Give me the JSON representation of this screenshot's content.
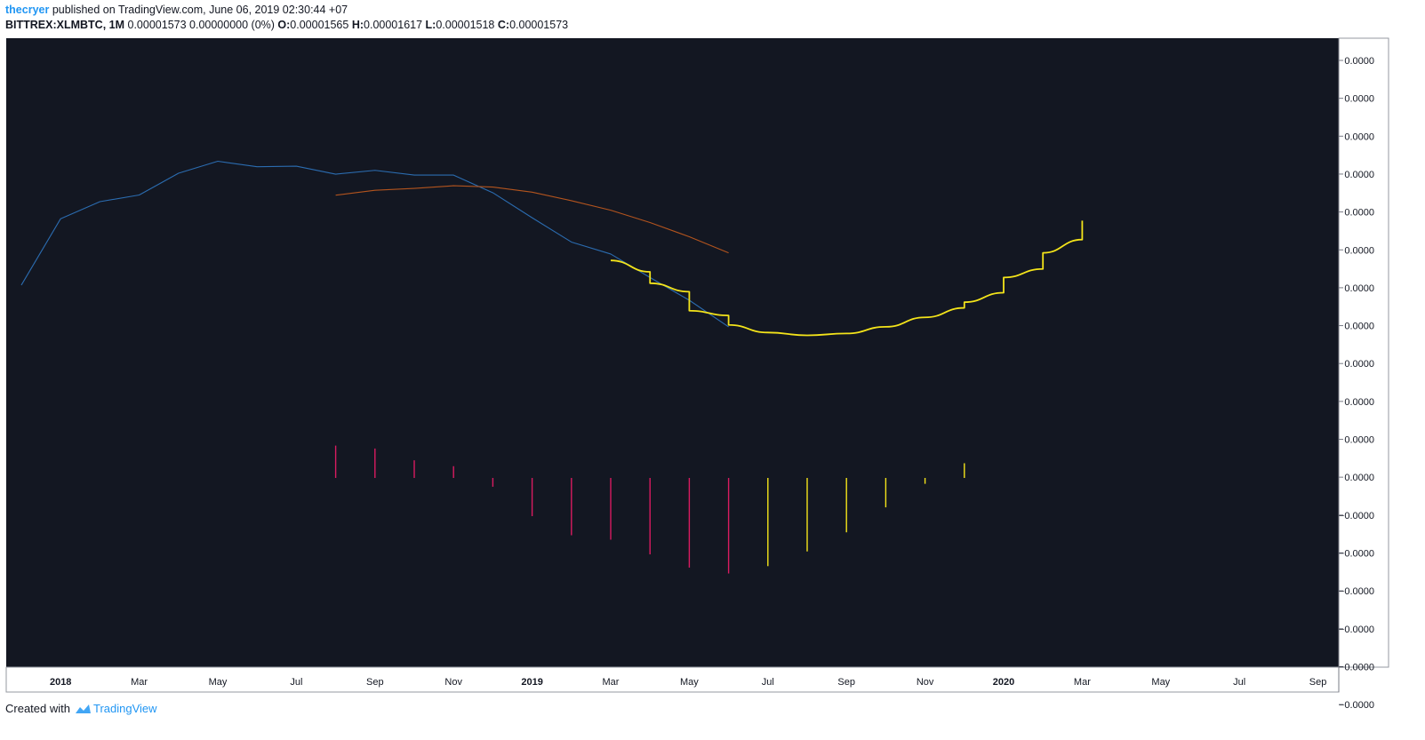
{
  "header": {
    "user": "thecryer",
    "published": " published on TradingView.com, June 06, 2019 02:30:44 +07",
    "symbol": "BITTREX:XLMBTC, 1M",
    "quote": " 0.00001573 0.00000000 (0%) ",
    "o_label": "O:",
    "o_value": "0.00001565 ",
    "h_label": "H:",
    "h_value": "0.00001617 ",
    "l_label": "L:",
    "l_value": "0.00001518 ",
    "c_label": "C:",
    "c_value": "0.00001573"
  },
  "footer": {
    "created_with": "Created with",
    "brand": "TradingView"
  },
  "colors": {
    "background": "#131722",
    "axis_text": "#b2b5be",
    "series_blue": "#2b6cb0",
    "series_orange": "#b3541e",
    "series_yellow": "#f4e41a",
    "hist_red": "#d81b60",
    "hist_yellow": "#f4e41a"
  },
  "chart_data": {
    "type": "line",
    "x_tick_labels": [
      "2018",
      "Mar",
      "May",
      "Jul",
      "Sep",
      "Nov",
      "2019",
      "Mar",
      "May",
      "Jul",
      "Sep",
      "Nov",
      "2020",
      "Mar",
      "May",
      "Jul",
      "Sep"
    ],
    "x_tick_bold": [
      true,
      false,
      false,
      false,
      false,
      false,
      true,
      false,
      false,
      false,
      false,
      false,
      true,
      false,
      false,
      false,
      false
    ],
    "y_tick_labels": [
      "0.0000",
      "0.0000",
      "0.0000",
      "0.0000",
      "0.0000",
      "0.0000",
      "0.0000",
      "0.0000",
      "0.0000",
      "0.0000",
      "0.0000",
      "0.0000",
      "−0.0000",
      "−0.0000",
      "−0.0000",
      "−0.0000",
      "−0.0000",
      "−0.0000"
    ],
    "x_months": [
      "2017-12",
      "2018-01",
      "2018-02",
      "2018-03",
      "2018-04",
      "2018-05",
      "2018-06",
      "2018-07",
      "2018-08",
      "2018-09",
      "2018-10",
      "2018-11",
      "2018-12",
      "2019-01",
      "2019-02",
      "2019-03",
      "2019-04",
      "2019-05",
      "2019-06",
      "2019-07",
      "2019-08",
      "2019-09",
      "2019-10",
      "2019-11",
      "2019-12",
      "2020-01",
      "2020-02",
      "2020-03"
    ],
    "ylim": [
      -6.0,
      16.0
    ],
    "series": [
      {
        "color_key": "series_blue",
        "points": [
          [
            "2017-12",
            8.2
          ],
          [
            "2018-01",
            11.7
          ],
          [
            "2018-02",
            12.6
          ],
          [
            "2018-03",
            12.95
          ],
          [
            "2018-04",
            14.1
          ],
          [
            "2018-05",
            14.73
          ],
          [
            "2018-06",
            14.44
          ],
          [
            "2018-07",
            14.47
          ],
          [
            "2018-08",
            14.05
          ],
          [
            "2018-09",
            14.25
          ],
          [
            "2018-10",
            14.0
          ],
          [
            "2018-11",
            14.0
          ],
          [
            "2018-12",
            13.07
          ],
          [
            "2019-01",
            11.75
          ],
          [
            "2019-02",
            10.47
          ],
          [
            "2019-03",
            9.84
          ],
          [
            "2019-04",
            8.6
          ],
          [
            "2019-05",
            7.4
          ],
          [
            "2019-06",
            6.0
          ]
        ]
      },
      {
        "color_key": "series_orange",
        "points": [
          [
            "2018-08",
            12.94
          ],
          [
            "2018-09",
            13.2
          ],
          [
            "2018-10",
            13.3
          ],
          [
            "2018-11",
            13.44
          ],
          [
            "2018-12",
            13.37
          ],
          [
            "2019-01",
            13.1
          ],
          [
            "2019-02",
            12.65
          ],
          [
            "2019-03",
            12.15
          ],
          [
            "2019-04",
            11.5
          ],
          [
            "2019-05",
            10.75
          ],
          [
            "2019-06",
            9.9
          ]
        ]
      },
      {
        "color_key": "series_yellow",
        "points": [
          [
            "2019-03",
            9.5
          ],
          [
            "2019-04",
            8.9
          ],
          [
            "2019-04",
            8.3
          ],
          [
            "2019-05",
            7.85
          ],
          [
            "2019-05",
            6.85
          ],
          [
            "2019-06",
            6.6
          ],
          [
            "2019-06",
            6.1
          ],
          [
            "2019-07",
            5.7
          ],
          [
            "2019-08",
            5.55
          ],
          [
            "2019-09",
            5.65
          ],
          [
            "2019-10",
            6.0
          ],
          [
            "2019-11",
            6.5
          ],
          [
            "2019-12",
            7.0
          ],
          [
            "2019-12",
            7.3
          ],
          [
            "2020-01",
            7.8
          ],
          [
            "2020-01",
            8.6
          ],
          [
            "2020-02",
            9.05
          ],
          [
            "2020-02",
            9.9
          ],
          [
            "2020-03",
            10.6
          ],
          [
            "2020-03",
            11.6
          ]
        ]
      }
    ],
    "histogram": {
      "from": "2018-08",
      "values": [
        1.1,
        1.0,
        0.6,
        0.4,
        -0.3,
        -1.3,
        -1.95,
        -2.1,
        -2.6,
        -3.05,
        -3.25,
        -3.0,
        -2.5,
        -1.85,
        -1.0,
        -0.2,
        0.5
      ],
      "colors": [
        "hist_red",
        "hist_red",
        "hist_red",
        "hist_red",
        "hist_red",
        "hist_red",
        "hist_red",
        "hist_red",
        "hist_red",
        "hist_red",
        "hist_red",
        "hist_yellow",
        "hist_yellow",
        "hist_yellow",
        "hist_yellow",
        "hist_yellow",
        "hist_yellow"
      ]
    }
  }
}
